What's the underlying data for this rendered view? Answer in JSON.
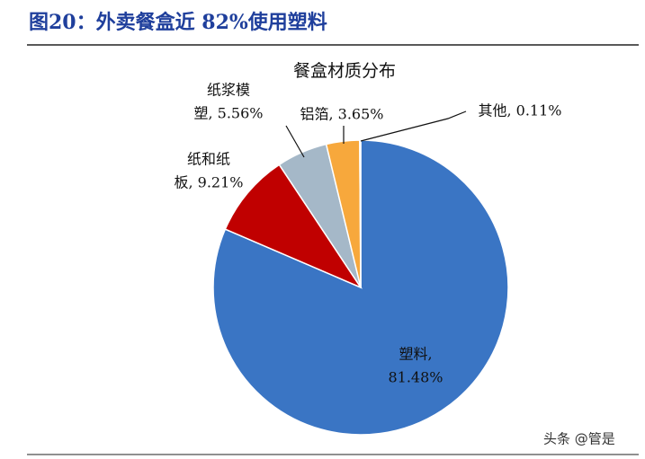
{
  "header": {
    "title": "图20：外卖餐盒近 82%使用塑料"
  },
  "chart_data": {
    "type": "pie",
    "title": "餐盒材质分布",
    "values": [
      81.48,
      9.21,
      5.56,
      3.65,
      0.11
    ],
    "value_labels": [
      [
        "塑料,",
        "81.48%"
      ],
      [
        "纸和纸",
        "板, 9.21%"
      ],
      [
        "纸浆模",
        "塑, 5.56%"
      ],
      [
        "铝箔, 3.65%"
      ],
      [
        "其他, 0.11%"
      ]
    ],
    "colors": [
      "#3a75c4",
      "#c00000",
      "#a5b8c8",
      "#f7a83c",
      "#2c5aa0"
    ]
  },
  "watermark": "头条 @管是"
}
